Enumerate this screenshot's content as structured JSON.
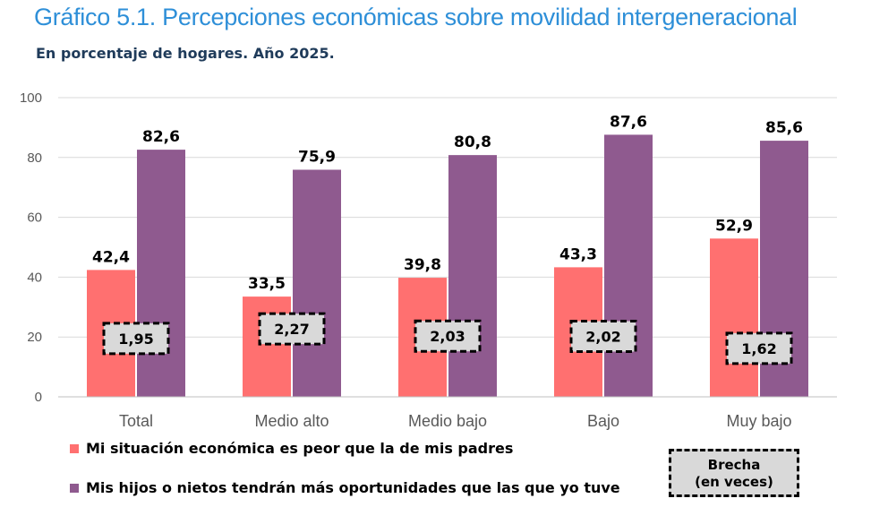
{
  "title": "Gráfico 5.1. Percepciones económicas sobre movilidad intergeneracional",
  "subtitle": "En porcentaje de hogares. Año 2025.",
  "colors": {
    "series1": "#FF7070",
    "series2": "#8F5A8F",
    "gap_box": "#D9D9D9",
    "title": "#2E8FD8"
  },
  "legend": {
    "series1": "Mi situación económica es peor que la de mis padres",
    "series2": "Mis hijos o nietos tendrán más oportunidades que las que yo tuve",
    "gap_line1": "Brecha",
    "gap_line2": "(en veces)"
  },
  "chart_data": {
    "type": "bar",
    "categories": [
      "Total",
      "Medio alto",
      "Medio bajo",
      "Bajo",
      "Muy bajo"
    ],
    "series": [
      {
        "name": "Mi situación económica es peor que la de mis padres",
        "values": [
          42.4,
          33.5,
          39.8,
          43.3,
          52.9
        ],
        "labels": [
          "42,4",
          "33,5",
          "39,8",
          "43,3",
          "52,9"
        ]
      },
      {
        "name": "Mis hijos o nietos tendrán más oportunidades que las que yo tuve",
        "values": [
          82.6,
          75.9,
          80.8,
          87.6,
          85.6
        ],
        "labels": [
          "82,6",
          "75,9",
          "80,8",
          "87,6",
          "85,6"
        ]
      }
    ],
    "gap_values": [
      1.95,
      2.27,
      2.03,
      2.02,
      1.62
    ],
    "gap_labels": [
      "1,95",
      "2,27",
      "2,03",
      "2,02",
      "1,62"
    ],
    "ylim": [
      0,
      100
    ],
    "yticks": [
      0,
      20,
      40,
      60,
      80,
      100
    ],
    "ytick_labels": [
      "0",
      "20",
      "40",
      "60",
      "80",
      "100"
    ],
    "grid": true,
    "legend_position": "bottom"
  }
}
